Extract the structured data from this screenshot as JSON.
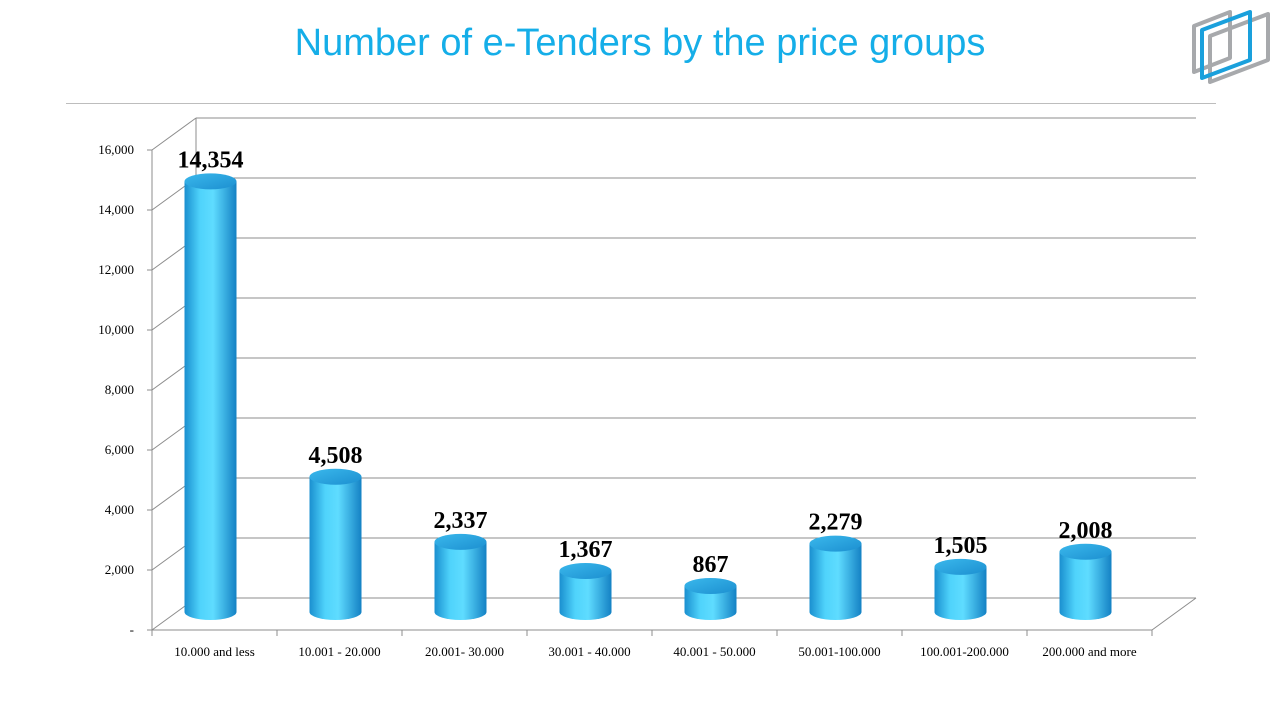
{
  "chart_data": {
    "type": "bar",
    "title": "Number of e-Tenders by the price groups",
    "categories": [
      "10.000 and less",
      "10.001 - 20.000",
      "20.001- 30.000",
      "30.001 - 40.000",
      "40.001 - 50.000",
      "50.001-100.000",
      "100.001-200.000",
      "200.000 and more"
    ],
    "values": [
      14354,
      4508,
      2337,
      1367,
      867,
      2279,
      1505,
      2008
    ],
    "data_labels": [
      "14,354",
      "4,508",
      "2,337",
      "1,367",
      "867",
      "2,279",
      "1,505",
      "2,008"
    ],
    "ylim": [
      0,
      16000
    ],
    "yticks": [
      0,
      2000,
      4000,
      6000,
      8000,
      10000,
      12000,
      14000,
      16000
    ],
    "ytick_labels": [
      "-",
      "2,000",
      "4,000",
      "6,000",
      "8,000",
      "10,000",
      "12,000",
      "14,000",
      "16,000"
    ],
    "grid": true,
    "style": "3d-cylinder",
    "bar_color": "#3fc6f2"
  }
}
